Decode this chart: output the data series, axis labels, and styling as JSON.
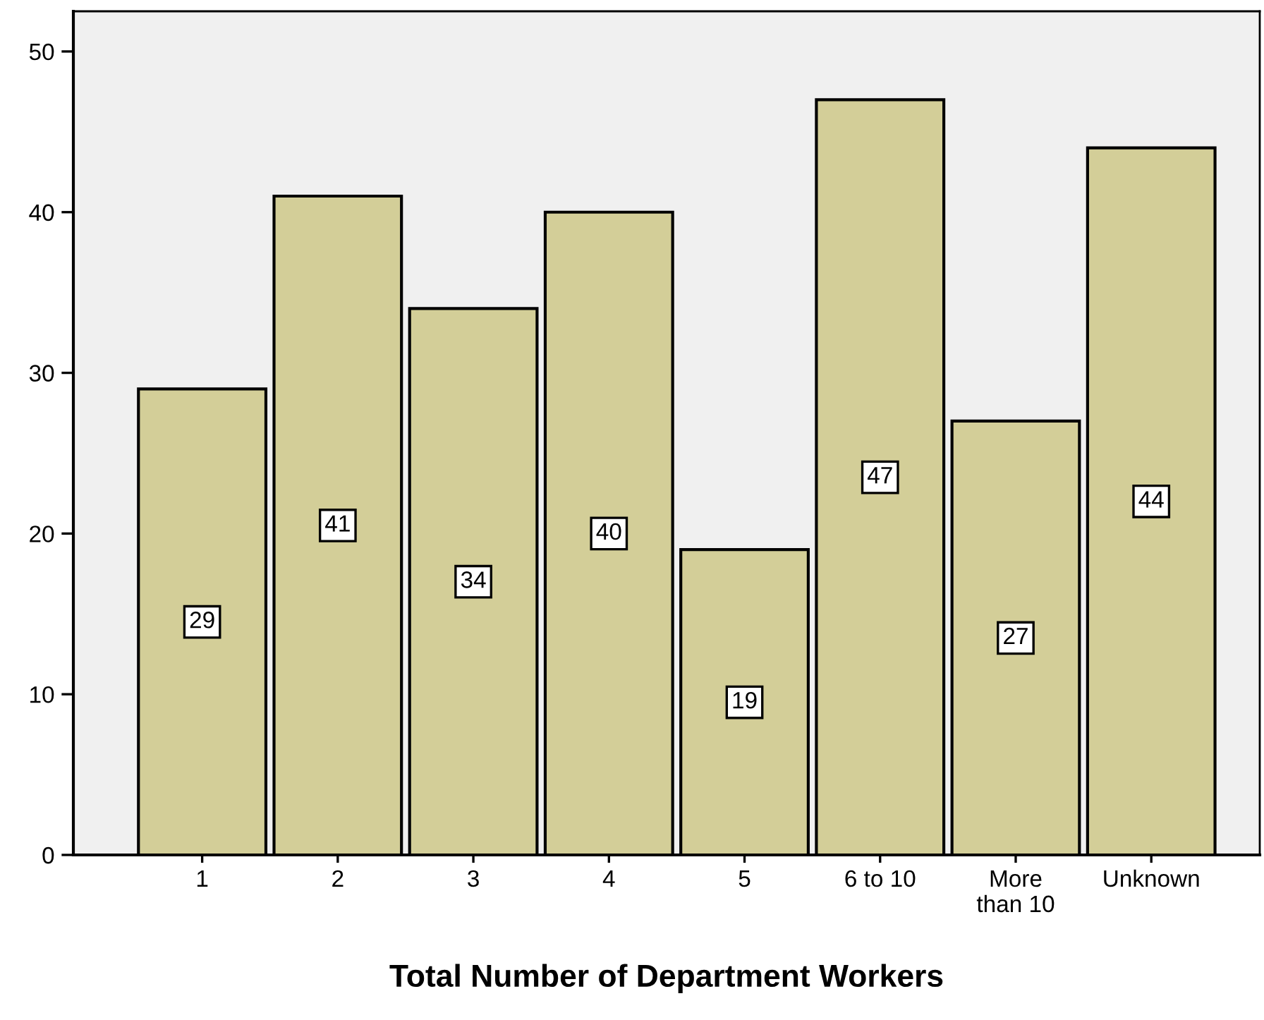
{
  "chart_data": {
    "type": "bar",
    "xlabel": "Total Number of Department Workers",
    "categories": [
      "1",
      "2",
      "3",
      "4",
      "5",
      "6 to 10",
      "More\nthan 10",
      "Unknown"
    ],
    "values": [
      29,
      41,
      34,
      40,
      19,
      47,
      27,
      44
    ],
    "color": "#d3ce98",
    "ylim": [
      0,
      52.5
    ],
    "yticks": [
      0,
      10,
      20,
      30,
      40,
      50
    ],
    "grid": false,
    "data_labels": true
  }
}
